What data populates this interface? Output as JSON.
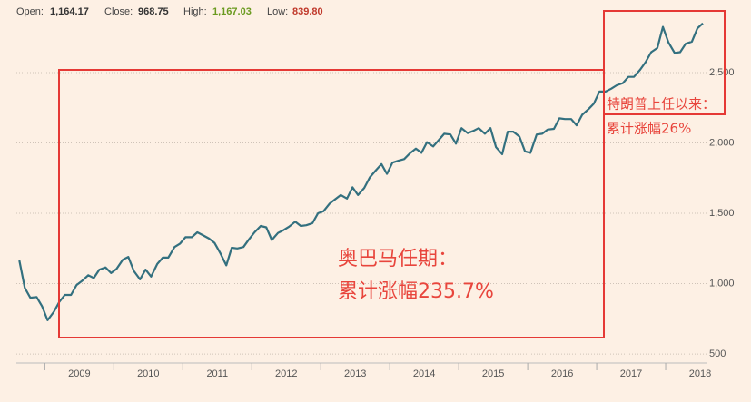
{
  "header": {
    "open_label": "Open:",
    "open": "1,164.17",
    "close_label": "Close:",
    "close": "968.75",
    "high_label": "High:",
    "high": "1,167.03",
    "low_label": "Low:",
    "low": "839.80"
  },
  "chart_data": {
    "type": "line",
    "color": "#33707f",
    "grid": true,
    "annotations": [
      "奥巴马任期：",
      "累计涨幅235.7%",
      "特朗普上任以来：",
      "累计涨幅26%"
    ],
    "xlim": [
      2008.35,
      2018.75
    ],
    "xticks": [
      2009,
      2010,
      2011,
      2012,
      2013,
      2014,
      2015,
      2016,
      2017,
      2018
    ],
    "ylim": [
      436,
      3016
    ],
    "yticks": [
      500,
      {
        "value": 1000,
        "label": "1,000"
      },
      {
        "value": 1500,
        "label": "1,500"
      },
      {
        "value": 2000,
        "label": "2,000"
      },
      {
        "value": 2500,
        "label": "2,500"
      }
    ],
    "x": [
      2008.63,
      2008.71,
      2008.79,
      2008.88,
      2008.96,
      2009.04,
      2009.13,
      2009.21,
      2009.29,
      2009.38,
      2009.46,
      2009.54,
      2009.63,
      2009.71,
      2009.79,
      2009.88,
      2009.96,
      2010.04,
      2010.13,
      2010.21,
      2010.29,
      2010.38,
      2010.46,
      2010.54,
      2010.63,
      2010.71,
      2010.79,
      2010.88,
      2010.96,
      2011.04,
      2011.13,
      2011.21,
      2011.29,
      2011.38,
      2011.46,
      2011.54,
      2011.63,
      2011.71,
      2011.79,
      2011.88,
      2011.96,
      2012.04,
      2012.13,
      2012.21,
      2012.29,
      2012.38,
      2012.46,
      2012.54,
      2012.63,
      2012.71,
      2012.79,
      2012.88,
      2012.96,
      2013.04,
      2013.13,
      2013.21,
      2013.29,
      2013.38,
      2013.46,
      2013.54,
      2013.63,
      2013.71,
      2013.79,
      2013.88,
      2013.96,
      2014.04,
      2014.13,
      2014.21,
      2014.29,
      2014.38,
      2014.46,
      2014.54,
      2014.63,
      2014.71,
      2014.79,
      2014.88,
      2014.96,
      2015.04,
      2015.13,
      2015.21,
      2015.29,
      2015.38,
      2015.46,
      2015.54,
      2015.63,
      2015.71,
      2015.79,
      2015.88,
      2015.96,
      2016.04,
      2016.13,
      2016.21,
      2016.29,
      2016.38,
      2016.46,
      2016.54,
      2016.63,
      2016.71,
      2016.79,
      2016.88,
      2016.96,
      2017.04,
      2017.13,
      2017.21,
      2017.29,
      2017.38,
      2017.46,
      2017.54,
      2017.63,
      2017.71,
      2017.79,
      2017.88,
      2017.96,
      2018.04,
      2018.13,
      2018.21,
      2018.29,
      2018.38,
      2018.46,
      2018.54
    ],
    "values": [
      1165,
      970,
      900,
      905,
      840,
      740,
      800,
      870,
      920,
      920,
      990,
      1020,
      1060,
      1040,
      1100,
      1115,
      1075,
      1105,
      1170,
      1190,
      1090,
      1030,
      1100,
      1050,
      1140,
      1185,
      1185,
      1260,
      1285,
      1330,
      1330,
      1365,
      1345,
      1320,
      1290,
      1220,
      1130,
      1255,
      1250,
      1260,
      1315,
      1365,
      1410,
      1400,
      1310,
      1360,
      1380,
      1405,
      1440,
      1410,
      1415,
      1430,
      1500,
      1515,
      1570,
      1600,
      1630,
      1605,
      1685,
      1630,
      1680,
      1755,
      1800,
      1850,
      1780,
      1860,
      1875,
      1885,
      1925,
      1960,
      1930,
      2005,
      1975,
      2020,
      2065,
      2060,
      1995,
      2105,
      2070,
      2085,
      2105,
      2065,
      2105,
      1970,
      1920,
      2080,
      2080,
      2045,
      1940,
      1930,
      2060,
      2065,
      2095,
      2100,
      2175,
      2170,
      2170,
      2125,
      2200,
      2240,
      2280,
      2365,
      2365,
      2385,
      2410,
      2425,
      2470,
      2470,
      2520,
      2575,
      2645,
      2675,
      2825,
      2715,
      2640,
      2645,
      2705,
      2720,
      2815,
      2850
    ]
  }
}
